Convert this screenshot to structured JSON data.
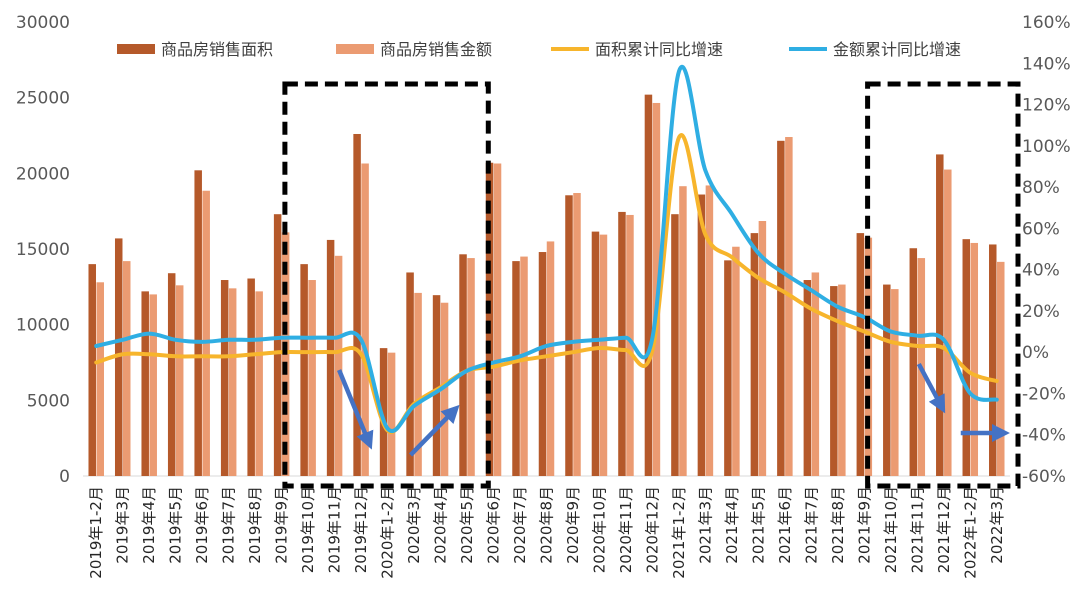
{
  "chart_data": {
    "type": "bar+line",
    "title": "",
    "categories": [
      "2019年1-2月",
      "2019年3月",
      "2019年4月",
      "2019年5月",
      "2019年6月",
      "2019年7月",
      "2019年8月",
      "2019年9月",
      "2019年10月",
      "2019年11月",
      "2019年12月",
      "2020年1-2月",
      "2020年3月",
      "2020年4月",
      "2020年5月",
      "2020年6月",
      "2020年7月",
      "2020年8月",
      "2020年9月",
      "2020年10月",
      "2020年11月",
      "2020年12月",
      "2021年1-2月",
      "2021年3月",
      "2021年4月",
      "2021年5月",
      "2021年6月",
      "2021年7月",
      "2021年8月",
      "2021年9月",
      "2021年10月",
      "2021年11月",
      "2021年12月",
      "2022年1-2月",
      "2022年3月"
    ],
    "left_axis": {
      "min": 0,
      "max": 30000,
      "ticks": [
        "0",
        "5000",
        "10000",
        "15000",
        "20000",
        "25000",
        "30000"
      ]
    },
    "right_axis": {
      "min": -60,
      "max": 160,
      "ticks": [
        "-60%",
        "-40%",
        "-20%",
        "0%",
        "20%",
        "40%",
        "60%",
        "80%",
        "100%",
        "120%",
        "140%",
        "160%"
      ]
    },
    "series": [
      {
        "name": "商品房销售面积",
        "type": "bar",
        "axis": "left",
        "color": "#b5592a",
        "values": [
          14000,
          15700,
          12200,
          13400,
          20200,
          12950,
          13050,
          17300,
          14000,
          15600,
          22600,
          8450,
          13450,
          11950,
          14650,
          20700,
          14200,
          14800,
          18550,
          16150,
          17450,
          25200,
          17300,
          18600,
          14250,
          16050,
          22150,
          12950,
          12550,
          16050,
          12650,
          15050,
          21250,
          15650,
          15300
        ]
      },
      {
        "name": "商品房销售金额",
        "type": "bar",
        "axis": "left",
        "color": "#eb9b72",
        "values": [
          12800,
          14200,
          12000,
          12600,
          18850,
          12400,
          12200,
          16100,
          12950,
          14550,
          20650,
          8150,
          12100,
          11450,
          14400,
          20650,
          14500,
          15500,
          18700,
          15950,
          17250,
          24650,
          19150,
          19200,
          15150,
          16850,
          22400,
          13450,
          12650,
          15750,
          12350,
          14400,
          20250,
          15400,
          14150
        ]
      },
      {
        "name": "面积累计同比增速",
        "type": "line",
        "axis": "right",
        "color": "#f7b52c",
        "values": [
          -5,
          -1,
          -1,
          -2,
          -2,
          -2,
          -1,
          0,
          0,
          0,
          -1,
          -38,
          -25,
          -17,
          -9,
          -7,
          -4,
          -2,
          0,
          2,
          1,
          1,
          104,
          57,
          46,
          36,
          29,
          21,
          15,
          10,
          5,
          3,
          2,
          -10,
          -14
        ]
      },
      {
        "name": "金额累计同比增速",
        "type": "line",
        "axis": "right",
        "color": "#2faee3",
        "values": [
          3,
          6,
          9,
          6,
          5,
          6,
          6,
          7,
          7,
          7,
          6,
          -37,
          -26,
          -18,
          -9,
          -5,
          -2,
          3,
          5,
          6,
          7,
          7,
          136,
          88,
          67,
          48,
          38,
          30,
          22,
          17,
          10,
          8,
          6,
          -20,
          -23
        ]
      }
    ],
    "legend": {
      "position": "top",
      "entries": [
        "商品房销售面积",
        "商品房销售金额",
        "面积累计同比增速",
        "金额累计同比增速"
      ]
    },
    "annotations": [
      {
        "type": "dashed-box",
        "from": "2019年10月",
        "to": "2020年5月"
      },
      {
        "type": "dashed-box",
        "from": "2021年10月",
        "to": "2022年3月"
      },
      {
        "type": "arrow",
        "direction": "down",
        "near": "2019年12月"
      },
      {
        "type": "arrow",
        "direction": "up",
        "near": "2020年4月"
      },
      {
        "type": "arrow",
        "direction": "down",
        "near": "2021年12月"
      },
      {
        "type": "arrow",
        "direction": "right",
        "near": "2022年3月"
      }
    ],
    "grid": false
  }
}
